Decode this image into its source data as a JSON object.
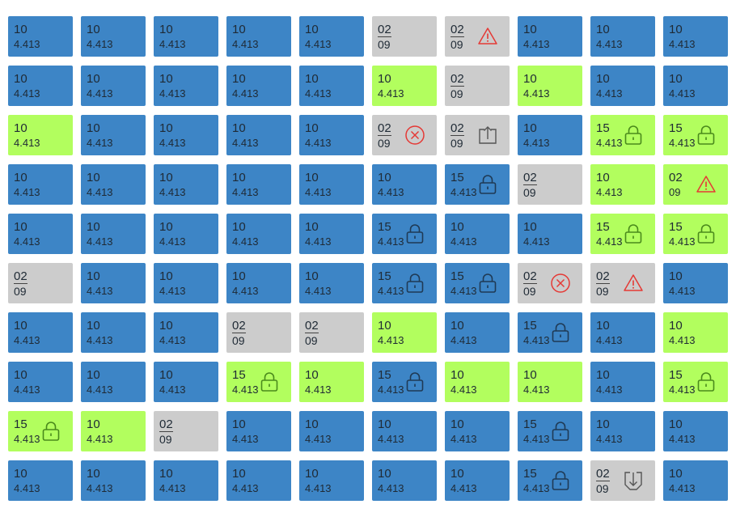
{
  "colors": {
    "blue": "#3d85c6",
    "green": "#b2fe5e",
    "gray": "#cccccc",
    "warning": "#e53935",
    "icon_dark": "#1f3a55"
  },
  "grid": [
    [
      {
        "c": "blue",
        "t": "10",
        "b": "4.413"
      },
      {
        "c": "blue",
        "t": "10",
        "b": "4.413"
      },
      {
        "c": "blue",
        "t": "10",
        "b": "4.413"
      },
      {
        "c": "blue",
        "t": "10",
        "b": "4.413"
      },
      {
        "c": "blue",
        "t": "10",
        "b": "4.413"
      },
      {
        "c": "gray",
        "t": "02",
        "b": "09"
      },
      {
        "c": "gray",
        "t": "02",
        "b": "09",
        "icon": "warning-icon"
      },
      {
        "c": "blue",
        "t": "10",
        "b": "4.413"
      },
      {
        "c": "blue",
        "t": "10",
        "b": "4.413"
      },
      {
        "c": "blue",
        "t": "10",
        "b": "4.413"
      }
    ],
    [
      {
        "c": "blue",
        "t": "10",
        "b": "4.413"
      },
      {
        "c": "blue",
        "t": "10",
        "b": "4.413"
      },
      {
        "c": "blue",
        "t": "10",
        "b": "4.413"
      },
      {
        "c": "blue",
        "t": "10",
        "b": "4.413"
      },
      {
        "c": "blue",
        "t": "10",
        "b": "4.413"
      },
      {
        "c": "green",
        "t": "10",
        "b": "4.413"
      },
      {
        "c": "gray",
        "t": "02",
        "b": "09"
      },
      {
        "c": "green",
        "t": "10",
        "b": "4.413"
      },
      {
        "c": "blue",
        "t": "10",
        "b": "4.413"
      },
      {
        "c": "blue",
        "t": "10",
        "b": "4.413"
      }
    ],
    [
      {
        "c": "green",
        "t": "10",
        "b": "4.413"
      },
      {
        "c": "blue",
        "t": "10",
        "b": "4.413"
      },
      {
        "c": "blue",
        "t": "10",
        "b": "4.413"
      },
      {
        "c": "blue",
        "t": "10",
        "b": "4.413"
      },
      {
        "c": "blue",
        "t": "10",
        "b": "4.413"
      },
      {
        "c": "gray",
        "t": "02",
        "b": "09",
        "icon": "error-icon"
      },
      {
        "c": "gray",
        "t": "02",
        "b": "09",
        "icon": "upload-icon"
      },
      {
        "c": "blue",
        "t": "10",
        "b": "4.413"
      },
      {
        "c": "green",
        "t": "15",
        "b": "4.413",
        "icon": "lock-icon"
      },
      {
        "c": "green",
        "t": "15",
        "b": "4.413",
        "icon": "lock-icon"
      }
    ],
    [
      {
        "c": "blue",
        "t": "10",
        "b": "4.413"
      },
      {
        "c": "blue",
        "t": "10",
        "b": "4.413"
      },
      {
        "c": "blue",
        "t": "10",
        "b": "4.413"
      },
      {
        "c": "blue",
        "t": "10",
        "b": "4.413"
      },
      {
        "c": "blue",
        "t": "10",
        "b": "4.413"
      },
      {
        "c": "blue",
        "t": "10",
        "b": "4.413"
      },
      {
        "c": "blue",
        "t": "15",
        "b": "4.413",
        "icon": "lock-icon"
      },
      {
        "c": "gray",
        "t": "02",
        "b": "09"
      },
      {
        "c": "green",
        "t": "10",
        "b": "4.413"
      },
      {
        "c": "green",
        "t": "02",
        "b": "09",
        "icon": "warning-icon"
      }
    ],
    [
      {
        "c": "blue",
        "t": "10",
        "b": "4.413"
      },
      {
        "c": "blue",
        "t": "10",
        "b": "4.413"
      },
      {
        "c": "blue",
        "t": "10",
        "b": "4.413"
      },
      {
        "c": "blue",
        "t": "10",
        "b": "4.413"
      },
      {
        "c": "blue",
        "t": "10",
        "b": "4.413"
      },
      {
        "c": "blue",
        "t": "15",
        "b": "4.413",
        "icon": "lock-icon"
      },
      {
        "c": "blue",
        "t": "10",
        "b": "4.413"
      },
      {
        "c": "blue",
        "t": "10",
        "b": "4.413"
      },
      {
        "c": "green",
        "t": "15",
        "b": "4.413",
        "icon": "lock-icon"
      },
      {
        "c": "green",
        "t": "15",
        "b": "4.413",
        "icon": "lock-icon"
      }
    ],
    [
      {
        "c": "gray",
        "t": "02",
        "b": "09"
      },
      {
        "c": "blue",
        "t": "10",
        "b": "4.413"
      },
      {
        "c": "blue",
        "t": "10",
        "b": "4.413"
      },
      {
        "c": "blue",
        "t": "10",
        "b": "4.413"
      },
      {
        "c": "blue",
        "t": "10",
        "b": "4.413"
      },
      {
        "c": "blue",
        "t": "15",
        "b": "4.413",
        "icon": "lock-icon"
      },
      {
        "c": "blue",
        "t": "15",
        "b": "4.413",
        "icon": "lock-icon"
      },
      {
        "c": "gray",
        "t": "02",
        "b": "09",
        "icon": "error-icon"
      },
      {
        "c": "gray",
        "t": "02",
        "b": "09",
        "icon": "warning-icon"
      },
      {
        "c": "blue",
        "t": "10",
        "b": "4.413"
      }
    ],
    [
      {
        "c": "blue",
        "t": "10",
        "b": "4.413"
      },
      {
        "c": "blue",
        "t": "10",
        "b": "4.413"
      },
      {
        "c": "blue",
        "t": "10",
        "b": "4.413"
      },
      {
        "c": "gray",
        "t": "02",
        "b": "09"
      },
      {
        "c": "gray",
        "t": "02",
        "b": "09"
      },
      {
        "c": "green",
        "t": "10",
        "b": "4.413"
      },
      {
        "c": "blue",
        "t": "10",
        "b": "4.413"
      },
      {
        "c": "blue",
        "t": "15",
        "b": "4.413",
        "icon": "lock-icon"
      },
      {
        "c": "blue",
        "t": "10",
        "b": "4.413"
      },
      {
        "c": "green",
        "t": "10",
        "b": "4.413"
      }
    ],
    [
      {
        "c": "blue",
        "t": "10",
        "b": "4.413"
      },
      {
        "c": "blue",
        "t": "10",
        "b": "4.413"
      },
      {
        "c": "blue",
        "t": "10",
        "b": "4.413"
      },
      {
        "c": "green",
        "t": "15",
        "b": "4.413",
        "icon": "lock-icon"
      },
      {
        "c": "green",
        "t": "10",
        "b": "4.413"
      },
      {
        "c": "blue",
        "t": "15",
        "b": "4.413",
        "icon": "lock-icon"
      },
      {
        "c": "green",
        "t": "10",
        "b": "4.413"
      },
      {
        "c": "green",
        "t": "10",
        "b": "4.413"
      },
      {
        "c": "blue",
        "t": "10",
        "b": "4.413"
      },
      {
        "c": "green",
        "t": "15",
        "b": "4.413",
        "icon": "lock-icon"
      }
    ],
    [
      {
        "c": "green",
        "t": "15",
        "b": "4.413",
        "icon": "lock-icon"
      },
      {
        "c": "green",
        "t": "10",
        "b": "4.413"
      },
      {
        "c": "gray",
        "t": "02",
        "b": "09"
      },
      {
        "c": "blue",
        "t": "10",
        "b": "4.413"
      },
      {
        "c": "blue",
        "t": "10",
        "b": "4.413"
      },
      {
        "c": "blue",
        "t": "10",
        "b": "4.413"
      },
      {
        "c": "blue",
        "t": "10",
        "b": "4.413"
      },
      {
        "c": "blue",
        "t": "15",
        "b": "4.413",
        "icon": "lock-icon"
      },
      {
        "c": "blue",
        "t": "10",
        "b": "4.413"
      },
      {
        "c": "blue",
        "t": "10",
        "b": "4.413"
      }
    ],
    [
      {
        "c": "blue",
        "t": "10",
        "b": "4.413"
      },
      {
        "c": "blue",
        "t": "10",
        "b": "4.413"
      },
      {
        "c": "blue",
        "t": "10",
        "b": "4.413"
      },
      {
        "c": "blue",
        "t": "10",
        "b": "4.413"
      },
      {
        "c": "blue",
        "t": "10",
        "b": "4.413"
      },
      {
        "c": "blue",
        "t": "10",
        "b": "4.413"
      },
      {
        "c": "blue",
        "t": "10",
        "b": "4.413"
      },
      {
        "c": "blue",
        "t": "15",
        "b": "4.413",
        "icon": "lock-icon"
      },
      {
        "c": "gray",
        "t": "02",
        "b": "09",
        "icon": "download-icon"
      },
      {
        "c": "blue",
        "t": "10",
        "b": "4.413"
      }
    ]
  ]
}
